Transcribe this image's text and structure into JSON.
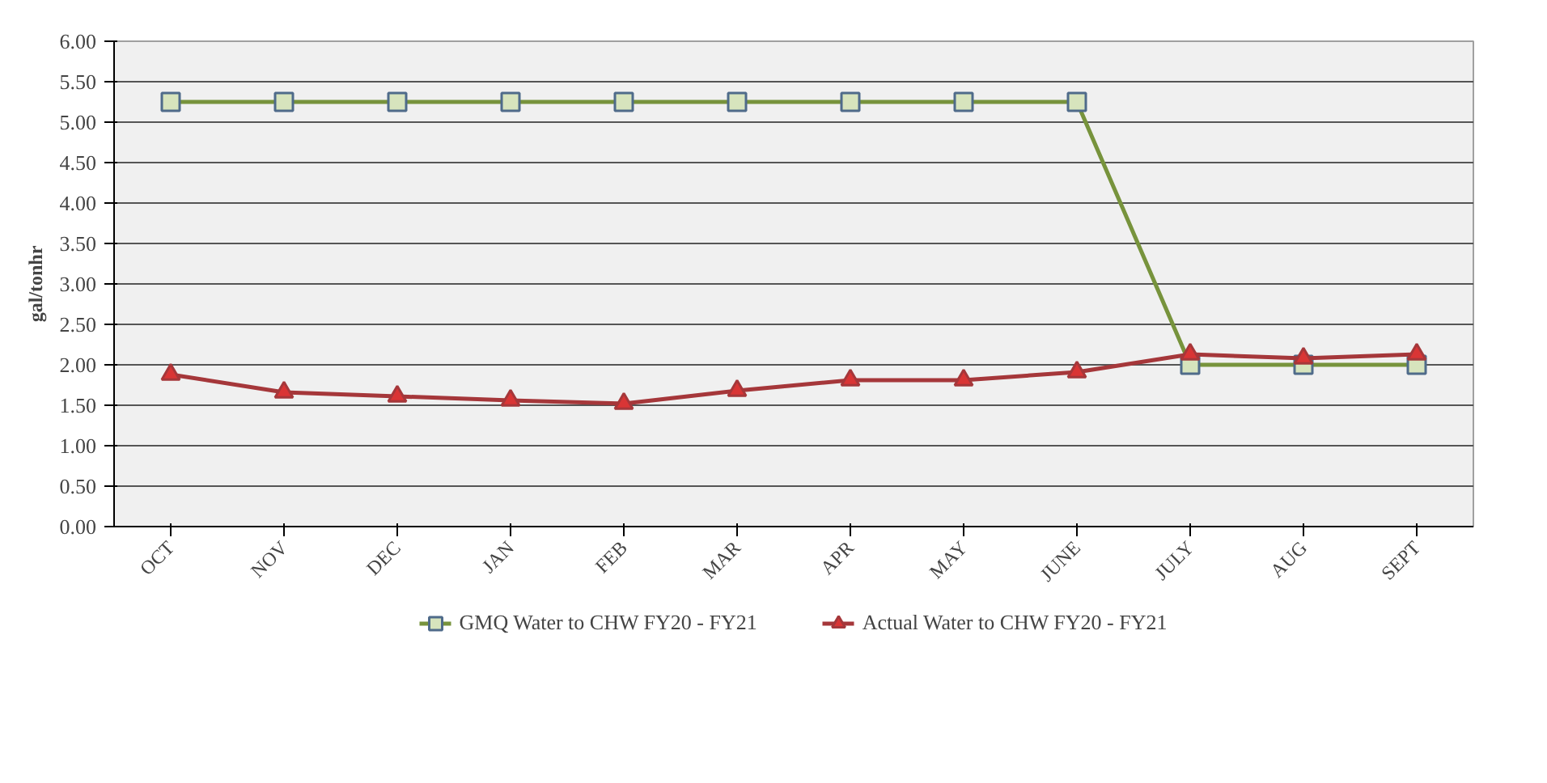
{
  "chart_data": {
    "type": "line",
    "ylabel": "gal/tonhr",
    "categories": [
      "OCT",
      "NOV",
      "DEC",
      "JAN",
      "FEB",
      "MAR",
      "APR",
      "MAY",
      "JUNE",
      "JULY",
      "AUG",
      "SEPT"
    ],
    "series": [
      {
        "name": "GMQ Water to CHW FY20 - FY21",
        "color": "#77933c",
        "marker": "square",
        "values": [
          5.25,
          5.25,
          5.25,
          5.25,
          5.25,
          5.25,
          5.25,
          5.25,
          5.25,
          2.0,
          2.0,
          2.0
        ]
      },
      {
        "name": "Actual Water to CHW FY20 - FY21",
        "color": "#a5373a",
        "marker": "triangle",
        "values": [
          1.88,
          1.66,
          1.61,
          1.56,
          1.52,
          1.68,
          1.81,
          1.81,
          1.91,
          2.13,
          2.08,
          2.13
        ]
      }
    ],
    "ylim": [
      0,
      6
    ],
    "yticks": [
      {
        "value": 0,
        "label": "0.00"
      },
      {
        "value": 0.5,
        "label": "0.50"
      },
      {
        "value": 1,
        "label": "1.00"
      },
      {
        "value": 1.5,
        "label": "1.50"
      },
      {
        "value": 2,
        "label": "2.00"
      },
      {
        "value": 2.5,
        "label": "2.50"
      },
      {
        "value": 3,
        "label": "3.00"
      },
      {
        "value": 3.5,
        "label": "3.50"
      },
      {
        "value": 4,
        "label": "4.00"
      },
      {
        "value": 4.5,
        "label": "4.50"
      },
      {
        "value": 5,
        "label": "5.00"
      },
      {
        "value": 5.5,
        "label": "5.50"
      },
      {
        "value": 6,
        "label": "6.00"
      }
    ],
    "grid": "y",
    "legend": "bottom"
  }
}
